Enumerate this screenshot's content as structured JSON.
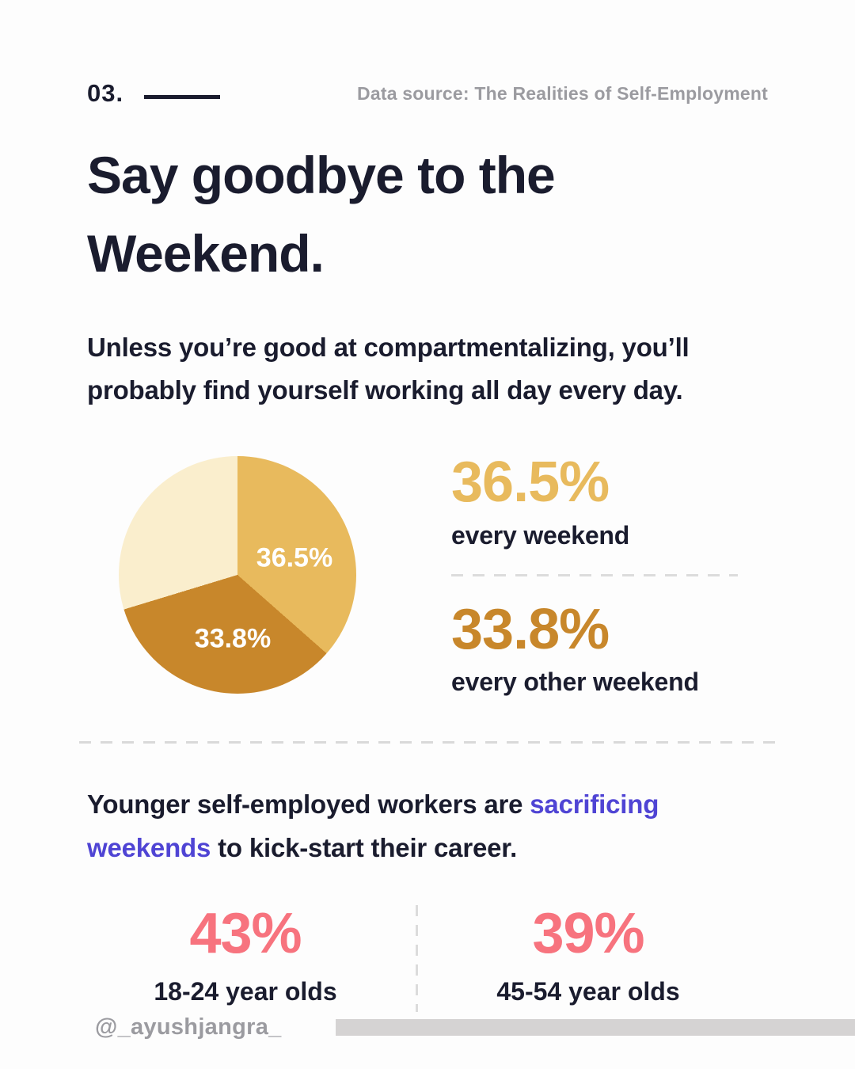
{
  "page": {
    "background": "#fdfdfd",
    "text_color": "#1a1c2e",
    "gold": "#e8ba5d",
    "dark_gold": "#c8872b",
    "cream": "#faeecd",
    "purple": "#4f44d4",
    "coral": "#f7737e",
    "gray": "#9b9ba0"
  },
  "header": {
    "index_label": "03.",
    "data_source": "Data source: The Realities of Self-Employment"
  },
  "title": "Say goodbye to the Weekend.",
  "subtitle": "Unless you’re good at compartmentalizing, you’ll probably find yourself working all day every day.",
  "chart_data": {
    "type": "pie",
    "slices": [
      {
        "value": 36.5,
        "display": "36.5%",
        "label": "every weekend",
        "color": "#e8ba5d",
        "label_color": "#ffffff"
      },
      {
        "value": 33.8,
        "display": "33.8%",
        "label": "every other weekend",
        "color": "#c8872b",
        "label_color": "#ffffff"
      },
      {
        "value": 29.7,
        "display": "",
        "label": "",
        "color": "#faeecd"
      }
    ],
    "legend_position": "right",
    "start_angle_deg": 0
  },
  "weekend_stats": [
    {
      "value": "36.5%",
      "label": "every weekend",
      "color": "#e8ba5d"
    },
    {
      "value": "33.8%",
      "label": "every other weekend",
      "color": "#c8872b"
    }
  ],
  "younger_section": {
    "text_before": "Younger self-employed workers are ",
    "highlight": "sacrificing weekends",
    "text_after": " to kick-start their career.",
    "stats": [
      {
        "value": "43%",
        "label": "18-24 year olds"
      },
      {
        "value": "39%",
        "label": "45-54 year olds"
      }
    ]
  },
  "footer": {
    "handle": "@_ayushjangra_"
  }
}
